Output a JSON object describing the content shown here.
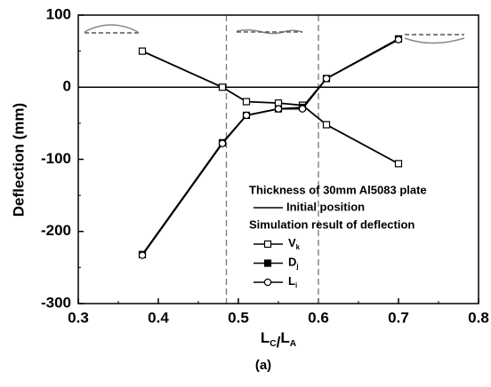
{
  "chart_data": {
    "type": "line",
    "x_label": "LC/LA",
    "y_label": "Deflection (mm)",
    "caption": "(a)",
    "legend_title": "Thickness of 30mm Al5083 plate",
    "legend_subtitle": "Simulation result of deflection",
    "reference_line": {
      "name": "Initial position",
      "y": 0
    },
    "reference_x": [
      0.485,
      0.6
    ],
    "x": [
      0.38,
      0.48,
      0.51,
      0.55,
      0.58,
      0.61,
      0.7
    ],
    "series": [
      {
        "name": "Vk",
        "color": "#000000",
        "marker": "open-square",
        "values": [
          50,
          0,
          -20,
          -22,
          -25,
          -52,
          -106
        ]
      },
      {
        "name": "Dj",
        "color": "#000000",
        "marker": "filled-square",
        "values": [
          -232,
          -77,
          -39,
          -30,
          -28,
          12,
          67
        ]
      },
      {
        "name": "Li",
        "color": "#000000",
        "marker": "open-circle",
        "values": [
          -233,
          -78,
          -39,
          -30,
          -30,
          12,
          66
        ]
      }
    ],
    "xlim": [
      0.3,
      0.8
    ],
    "xticks": [
      0.3,
      0.4,
      0.5,
      0.6,
      0.7,
      0.8
    ],
    "ylim": [
      -300,
      100
    ],
    "yticks": [
      -300,
      -200,
      -100,
      0,
      100
    ],
    "grid": false
  }
}
